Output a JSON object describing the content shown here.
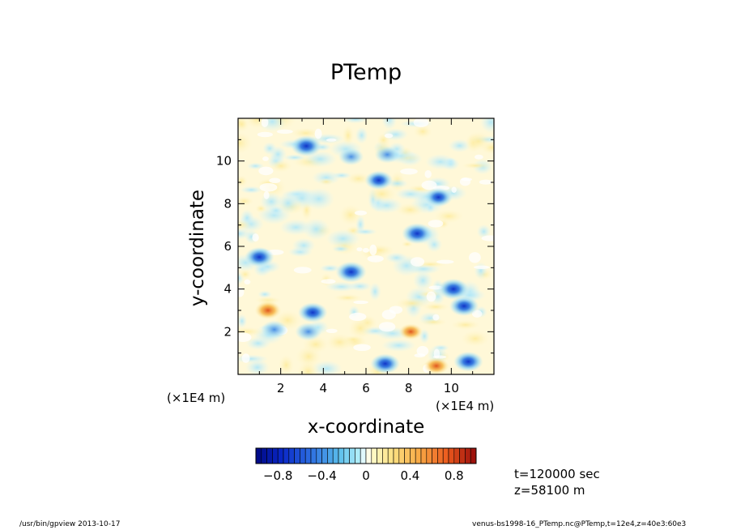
{
  "chart_data": {
    "type": "heatmap",
    "title": "PTemp",
    "xlabel": "x-coordinate",
    "ylabel": "y-coordinate",
    "x_scale_label": "(×1E4 m)",
    "y_scale_label": "(×1E4 m)",
    "xlim": [
      0,
      12
    ],
    "ylim": [
      0,
      12
    ],
    "x_ticks": [
      2,
      4,
      6,
      8,
      10
    ],
    "y_ticks": [
      2,
      4,
      6,
      8,
      10
    ],
    "x_tick_labels": [
      "2",
      "4",
      "6",
      "8",
      "10"
    ],
    "y_tick_labels": [
      "2",
      "4",
      "6",
      "8",
      "10"
    ],
    "grid": false,
    "colorbar": {
      "range": [
        -1,
        1
      ],
      "ticks": [
        -0.8,
        -0.4,
        0,
        0.4,
        0.8
      ],
      "tick_labels": [
        "−0.8",
        "−0.4",
        "0",
        "0.4",
        "0.8"
      ],
      "placement": "bottom"
    },
    "features": [
      {
        "x": 3.2,
        "y": 10.7,
        "value": -0.9
      },
      {
        "x": 5.3,
        "y": 10.2,
        "value": -0.5
      },
      {
        "x": 7.0,
        "y": 10.3,
        "value": -0.5
      },
      {
        "x": 6.6,
        "y": 9.1,
        "value": -0.7
      },
      {
        "x": 9.4,
        "y": 8.3,
        "value": -0.7
      },
      {
        "x": 8.4,
        "y": 6.6,
        "value": -0.9
      },
      {
        "x": 1.0,
        "y": 5.5,
        "value": -0.8
      },
      {
        "x": 5.3,
        "y": 4.8,
        "value": -0.9
      },
      {
        "x": 10.1,
        "y": 4.0,
        "value": -0.9
      },
      {
        "x": 10.6,
        "y": 3.2,
        "value": -0.8
      },
      {
        "x": 3.5,
        "y": 2.9,
        "value": -0.8
      },
      {
        "x": 3.3,
        "y": 2.0,
        "value": -0.6
      },
      {
        "x": 1.7,
        "y": 2.1,
        "value": -0.6
      },
      {
        "x": 6.9,
        "y": 0.5,
        "value": -0.8
      },
      {
        "x": 10.8,
        "y": 0.6,
        "value": -0.8
      },
      {
        "x": 9.3,
        "y": 0.4,
        "value": 0.5
      },
      {
        "x": 1.4,
        "y": 3.0,
        "value": 0.6
      },
      {
        "x": 8.1,
        "y": 2.0,
        "value": 0.4
      }
    ]
  },
  "info": {
    "time": "t=120000 sec",
    "z": "z=58100 m"
  },
  "footer": {
    "left": "/usr/bin/gpview  2013-10-17",
    "right": "venus-bs1998-16_PTemp.nc@PTemp,t=12e4,z=40e3:60e3"
  }
}
